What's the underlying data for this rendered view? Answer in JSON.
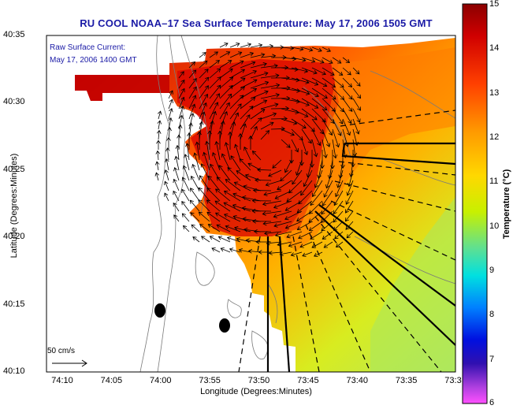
{
  "title": "RU COOL  NOAA–17  Sea Surface Temperature:  May 17, 2006 1505 GMT",
  "legend": {
    "line1": "Raw Surface Current:",
    "line2": "May 17, 2006 1400 GMT"
  },
  "scale_label": "50 cm/s",
  "axes": {
    "xlabel": "Longitude (Degrees:Minutes)",
    "ylabel": "Latitude (Degrees:Minutes)",
    "xticks": [
      "74:10",
      "74:05",
      "74:00",
      "73:55",
      "73:50",
      "73:45",
      "73:40",
      "73:35",
      "73:3"
    ],
    "yticks": [
      "40:35",
      "40:30",
      "40:25",
      "40:20",
      "40:15",
      "40:10"
    ]
  },
  "colorbar": {
    "label": "Temperature (°C)",
    "ticks": [
      "15",
      "14",
      "13",
      "12",
      "11",
      "10",
      "9",
      "8",
      "7",
      "6"
    ],
    "range": [
      6,
      15
    ],
    "colors": [
      "#8b0000",
      "#e00000",
      "#ff6a00",
      "#ffc000",
      "#e8f000",
      "#9be84a",
      "#00e0e0",
      "#0060ff",
      "#1010c0",
      "#8040c0",
      "#ff40ff"
    ]
  }
}
